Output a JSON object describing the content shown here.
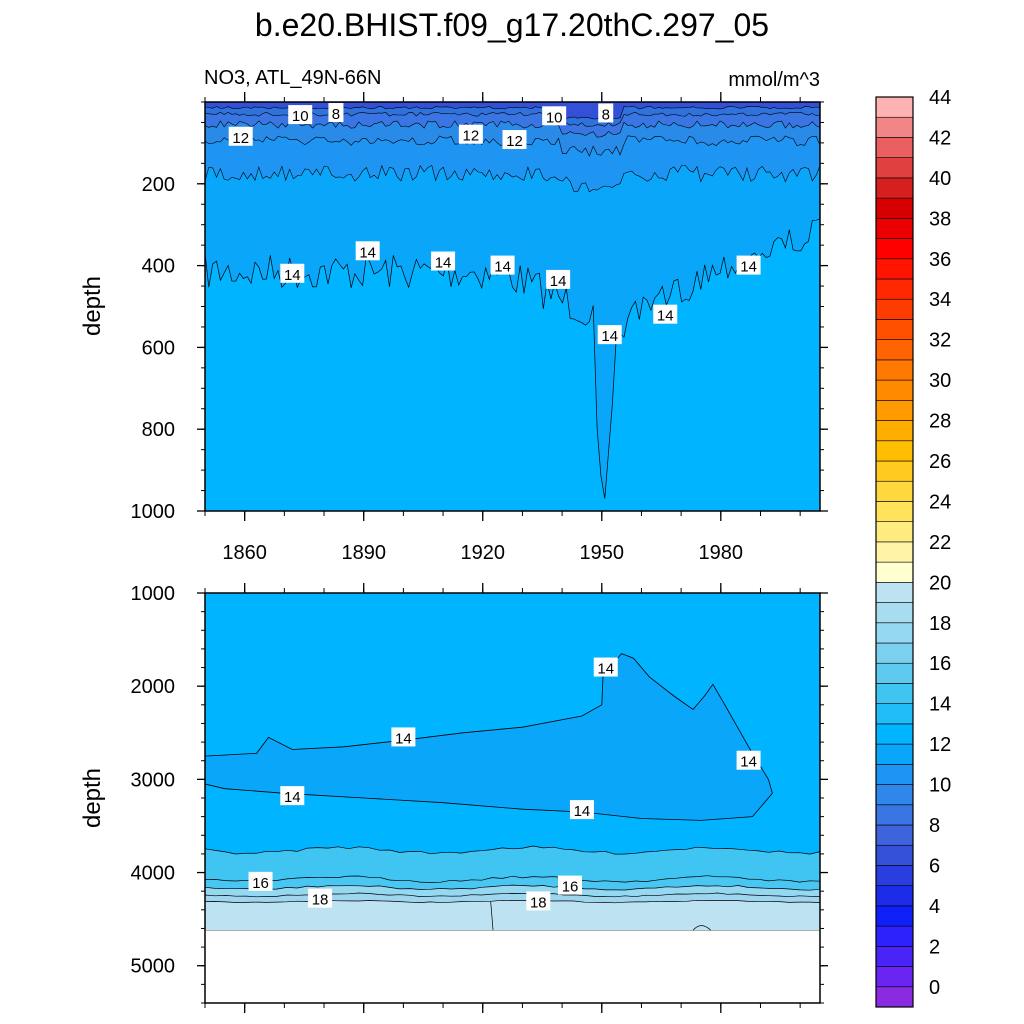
{
  "chart_data": [
    {
      "type": "contour",
      "panel": "upper",
      "title": "b.e20.BHIST.f09_g17.20thC.297_05",
      "subtitle_left": "NO3, ATL_49N-66N",
      "subtitle_right": "mmol/m^3",
      "ylabel": "depth",
      "xlabel": "",
      "xlim": [
        1850,
        2005
      ],
      "ylim": [
        1000,
        0
      ],
      "x_ticks": [
        "1860",
        "1890",
        "1920",
        "1950",
        "1980"
      ],
      "y_ticks": [
        "200",
        "400",
        "600",
        "800",
        "1000"
      ],
      "contour_labels": [
        {
          "text": "8",
          "x": 1883,
          "y": 27
        },
        {
          "text": "10",
          "x": 1874,
          "y": 32
        },
        {
          "text": "12",
          "x": 1859,
          "y": 85
        },
        {
          "text": "12",
          "x": 1917,
          "y": 80
        },
        {
          "text": "12",
          "x": 1928,
          "y": 93
        },
        {
          "text": "10",
          "x": 1938,
          "y": 35
        },
        {
          "text": "8",
          "x": 1951,
          "y": 28
        },
        {
          "text": "14",
          "x": 1872,
          "y": 420
        },
        {
          "text": "14",
          "x": 1891,
          "y": 365
        },
        {
          "text": "14",
          "x": 1910,
          "y": 390
        },
        {
          "text": "14",
          "x": 1925,
          "y": 400
        },
        {
          "text": "14",
          "x": 1939,
          "y": 435
        },
        {
          "text": "14",
          "x": 1952,
          "y": 570
        },
        {
          "text": "14",
          "x": 1966,
          "y": 520
        },
        {
          "text": "14",
          "x": 1987,
          "y": 400
        }
      ],
      "regions": [
        {
          "range": "6-8",
          "depths": [
            0,
            15
          ]
        },
        {
          "range": "8-10",
          "depths": [
            15,
            30
          ]
        },
        {
          "range": "10-12",
          "depths": [
            30,
            80
          ]
        },
        {
          "range": "12-14",
          "depths": [
            80,
            400
          ]
        },
        {
          "range": "14-16",
          "depths": [
            400,
            1000
          ]
        }
      ]
    },
    {
      "type": "contour",
      "panel": "lower",
      "ylabel": "depth",
      "xlabel": "",
      "xlim": [
        1850,
        2005
      ],
      "ylim": [
        5400,
        1000
      ],
      "y_ticks": [
        "1000",
        "2000",
        "3000",
        "4000",
        "5000"
      ],
      "contour_labels": [
        {
          "text": "14",
          "x": 1951,
          "y": 1800
        },
        {
          "text": "14",
          "x": 1900,
          "y": 2550
        },
        {
          "text": "14",
          "x": 1872,
          "y": 3180
        },
        {
          "text": "14",
          "x": 1945,
          "y": 3330
        },
        {
          "text": "14",
          "x": 1987,
          "y": 2800
        },
        {
          "text": "16",
          "x": 1864,
          "y": 4100
        },
        {
          "text": "18",
          "x": 1879,
          "y": 4280
        },
        {
          "text": "16",
          "x": 1942,
          "y": 4140
        },
        {
          "text": "18",
          "x": 1934,
          "y": 4310
        }
      ],
      "regions": [
        {
          "range": "12-14",
          "depths": [
            2700,
            3400
          ]
        },
        {
          "range": "14-16",
          "depths": [
            1000,
            3750
          ]
        },
        {
          "range": "16-18",
          "depths": [
            3750,
            4150
          ]
        },
        {
          "range": "18-20",
          "depths": [
            4150,
            4300
          ]
        },
        {
          "range": "20-22",
          "depths": [
            4300,
            4620
          ]
        },
        {
          "range": "missing",
          "depths": [
            4620,
            5400
          ]
        }
      ]
    }
  ],
  "colorbar": {
    "labels": [
      "0",
      "2",
      "4",
      "6",
      "8",
      "10",
      "12",
      "14",
      "16",
      "18",
      "20",
      "22",
      "24",
      "26",
      "28",
      "30",
      "32",
      "34",
      "36",
      "38",
      "40",
      "42",
      "44"
    ],
    "colors": [
      "#8a2be2",
      "#6a26f0",
      "#4a24f7",
      "#2d22fb",
      "#0f1ff8",
      "#1b2be8",
      "#2a3ee0",
      "#3550d8",
      "#3e63dc",
      "#3975e3",
      "#2f86eb",
      "#1e95f2",
      "#0aa6fa",
      "#00b4ff",
      "#21bdf8",
      "#40c4f2",
      "#5fcaf0",
      "#7bd0f0",
      "#94d8f1",
      "#a8dcf0",
      "#bde3f3",
      "#ffffcf",
      "#fff4a6",
      "#ffec80",
      "#ffe35a",
      "#ffd73e",
      "#ffcb1f",
      "#ffbe00",
      "#ffac00",
      "#ff9b00",
      "#ff8a00",
      "#ff7800",
      "#ff6400",
      "#ff5000",
      "#ff3c00",
      "#ff2800",
      "#ff1400",
      "#ff0000",
      "#ea0000",
      "#d70000",
      "#d61f1f",
      "#e04040",
      "#ea6060",
      "#f28686",
      "#ffb2b2"
    ]
  }
}
